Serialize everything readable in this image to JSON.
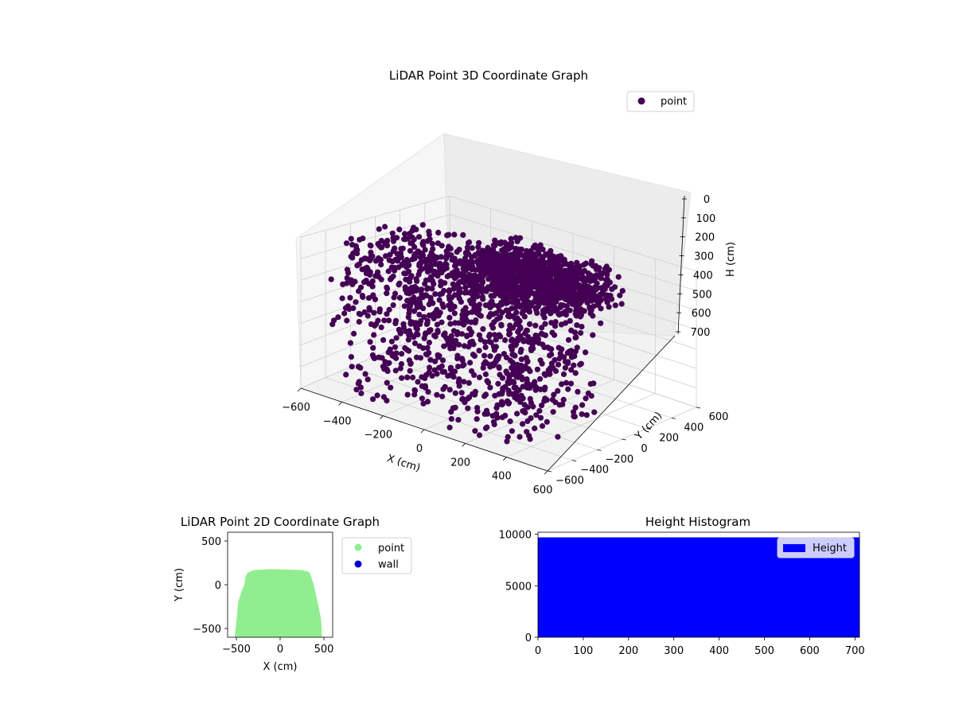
{
  "colors": {
    "point3d": "#440154",
    "point2d": "#90ee90",
    "wall": "#0000cd",
    "histogram": "#0000ff",
    "pane": "#f2f2f2",
    "grid": "#cfcfcf"
  },
  "chart_data": [
    {
      "type": "scatter",
      "title": "LiDAR Point 3D Coordinate Graph",
      "xlabel": "X (cm)",
      "ylabel": "Y (cm)",
      "zlabel": "H (cm)",
      "xlim": [
        -600,
        600
      ],
      "ylim": [
        -600,
        600
      ],
      "zlim": [
        700,
        0
      ],
      "z_inverted": true,
      "grid": true,
      "legend_position": "top-right",
      "x_ticks": [
        "−600",
        "−400",
        "−200",
        "0",
        "200",
        "400",
        "600"
      ],
      "y_ticks": [
        "−600",
        "−400",
        "−200",
        "0",
        "200",
        "400",
        "600"
      ],
      "z_ticks": [
        "0",
        "100",
        "200",
        "300",
        "400",
        "500",
        "600",
        "700"
      ],
      "series": [
        {
          "name": "point",
          "color": "#440154",
          "description_of_extent": {
            "x_range": [
              -500,
              450
            ],
            "y_range": [
              -550,
              150
            ],
            "h_range": [
              0,
              700
            ]
          }
        }
      ]
    },
    {
      "type": "scatter",
      "title": "LiDAR Point 2D Coordinate Graph",
      "xlabel": "X (cm)",
      "ylabel": "Y (cm)",
      "xlim": [
        -600,
        600
      ],
      "ylim": [
        -600,
        600
      ],
      "x_ticks": [
        "−500",
        "0",
        "500"
      ],
      "y_ticks": [
        "−500",
        "0",
        "500"
      ],
      "legend_position": "outside-right",
      "series": [
        {
          "name": "point",
          "color": "#90ee90",
          "outline": [
            [
              -500,
              -590
            ],
            [
              -480,
              -400
            ],
            [
              -460,
              -200
            ],
            [
              -420,
              -70
            ],
            [
              -390,
              0
            ],
            [
              -380,
              80
            ],
            [
              -360,
              120
            ],
            [
              -300,
              150
            ],
            [
              -100,
              160
            ],
            [
              100,
              155
            ],
            [
              250,
              150
            ],
            [
              320,
              130
            ],
            [
              340,
              80
            ],
            [
              370,
              -20
            ],
            [
              410,
              -200
            ],
            [
              450,
              -400
            ],
            [
              460,
              -590
            ]
          ]
        },
        {
          "name": "wall",
          "color": "#0000cd",
          "values": []
        }
      ]
    },
    {
      "type": "bar",
      "title": "Height Histogram",
      "xlim": [
        0,
        710
      ],
      "ylim": [
        0,
        10200
      ],
      "x_ticks": [
        "0",
        "100",
        "200",
        "300",
        "400",
        "500",
        "600",
        "700"
      ],
      "y_ticks": [
        "0",
        "5000",
        "10000"
      ],
      "legend_position": "top-right",
      "series": [
        {
          "name": "Height",
          "color": "#0000ff",
          "bins": [
            [
              0,
              710,
              9700
            ]
          ]
        }
      ]
    }
  ]
}
